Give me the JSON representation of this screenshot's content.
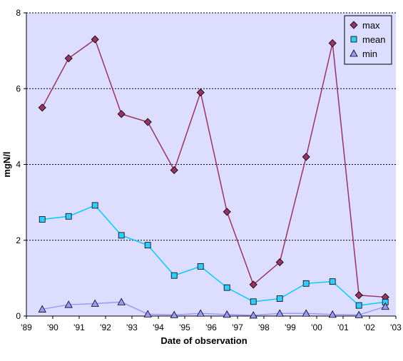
{
  "chart_data": {
    "type": "line",
    "title": "",
    "xlabel": "Date of observation",
    "ylabel": "mgN/l",
    "x_ticks": [
      "'89",
      "'90",
      "'91",
      "'92",
      "'93",
      "'94",
      "'95",
      "'96",
      "'97",
      "'98",
      "'99",
      "'00",
      "'01",
      "'02",
      "'03"
    ],
    "y_ticks": [
      "0",
      "2",
      "4",
      "6",
      "8"
    ],
    "ylim": [
      0,
      8
    ],
    "xlim": [
      1989,
      2003
    ],
    "grid": "horizontal dotted",
    "legend_position": "top-right",
    "x": [
      1989.6,
      1990.6,
      1991.6,
      1992.6,
      1993.6,
      1994.6,
      1995.6,
      1996.6,
      1997.6,
      1998.6,
      1999.6,
      2000.6,
      2001.6,
      2002.6
    ],
    "series": [
      {
        "name": "max",
        "color": "#993366",
        "fill": "#993366",
        "marker": "diamond",
        "values": [
          5.5,
          6.8,
          7.3,
          5.33,
          5.12,
          3.85,
          5.9,
          2.75,
          0.83,
          1.42,
          4.2,
          7.2,
          0.55,
          0.5
        ]
      },
      {
        "name": "mean",
        "color": "#00CCFF",
        "fill": "#33CCFF",
        "marker": "square",
        "values": [
          2.55,
          2.63,
          2.92,
          2.13,
          1.87,
          1.07,
          1.31,
          0.75,
          0.38,
          0.46,
          0.86,
          0.91,
          0.28,
          0.37
        ]
      },
      {
        "name": "min",
        "color": "#9999FF",
        "fill": "#9999FF",
        "marker": "triangle",
        "values": [
          0.18,
          0.3,
          0.33,
          0.37,
          0.05,
          0.03,
          0.07,
          0.04,
          0.02,
          0.07,
          0.07,
          0.04,
          0.03,
          0.25
        ]
      }
    ],
    "colors": {
      "plot_background": "#DDDDFF",
      "grid": "#000000"
    }
  }
}
